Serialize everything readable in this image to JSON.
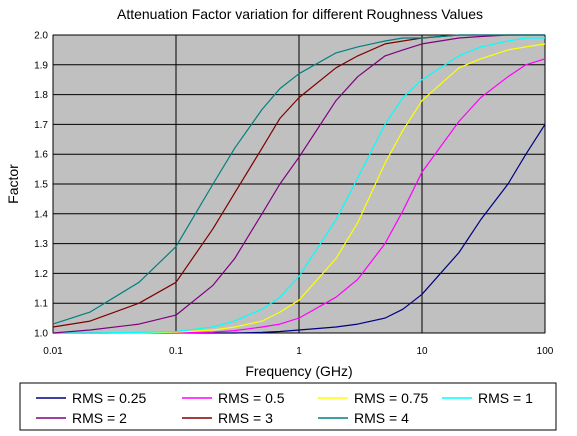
{
  "chart_data": {
    "type": "line",
    "title": "Attenuation Factor variation for different Roughness Values",
    "xlabel": "Frequency (GHz)",
    "ylabel": "Factor",
    "x_scale": "log",
    "xlim": [
      0.01,
      100
    ],
    "ylim": [
      1.0,
      2.0
    ],
    "x_ticks": [
      "0.01",
      "0.1",
      "1",
      "10",
      "100"
    ],
    "y_ticks": [
      "1.0",
      "1.1",
      "1.2",
      "1.3",
      "1.4",
      "1.5",
      "1.6",
      "1.7",
      "1.8",
      "1.9",
      "2.0"
    ],
    "grid": true,
    "plot_background": "#c0c0c0",
    "legend_position": "bottom",
    "x": [
      0.01,
      0.02,
      0.05,
      0.1,
      0.2,
      0.3,
      0.5,
      0.7,
      1,
      2,
      3,
      5,
      7,
      10,
      20,
      30,
      50,
      70,
      100
    ],
    "series": [
      {
        "name": "RMS = 0.25",
        "color": "#000080",
        "values": [
          1.0,
          1.0,
          1.0,
          1.0,
          1.0,
          1.0,
          1.002,
          1.005,
          1.01,
          1.02,
          1.03,
          1.05,
          1.08,
          1.13,
          1.27,
          1.38,
          1.5,
          1.6,
          1.7
        ]
      },
      {
        "name": "RMS = 0.5",
        "color": "#ff00ff",
        "values": [
          1.0,
          1.0,
          1.0,
          1.0,
          1.003,
          1.008,
          1.02,
          1.03,
          1.05,
          1.12,
          1.18,
          1.3,
          1.41,
          1.54,
          1.71,
          1.79,
          1.86,
          1.9,
          1.92
        ]
      },
      {
        "name": "RMS = 0.75",
        "color": "#ffff00",
        "values": [
          1.0,
          1.0,
          1.0,
          1.003,
          1.01,
          1.02,
          1.04,
          1.07,
          1.11,
          1.25,
          1.37,
          1.57,
          1.68,
          1.78,
          1.89,
          1.92,
          1.95,
          1.96,
          1.97
        ]
      },
      {
        "name": "RMS = 1",
        "color": "#00ffff",
        "values": [
          1.0,
          1.0,
          1.002,
          1.005,
          1.02,
          1.04,
          1.08,
          1.12,
          1.19,
          1.38,
          1.52,
          1.7,
          1.79,
          1.85,
          1.93,
          1.96,
          1.98,
          1.99,
          1.99
        ]
      },
      {
        "name": "RMS = 2",
        "color": "#800080",
        "values": [
          1.0,
          1.01,
          1.03,
          1.06,
          1.16,
          1.25,
          1.4,
          1.5,
          1.59,
          1.78,
          1.86,
          1.93,
          1.95,
          1.97,
          1.99,
          1.995,
          2.0,
          2.0,
          2.0
        ]
      },
      {
        "name": "RMS = 3",
        "color": "#800000",
        "values": [
          1.02,
          1.04,
          1.1,
          1.17,
          1.35,
          1.47,
          1.62,
          1.72,
          1.79,
          1.89,
          1.93,
          1.97,
          1.98,
          1.99,
          2.0,
          2.0,
          2.0,
          2.0,
          2.0
        ]
      },
      {
        "name": "RMS = 4",
        "color": "#008080",
        "values": [
          1.03,
          1.07,
          1.17,
          1.29,
          1.5,
          1.62,
          1.75,
          1.82,
          1.87,
          1.94,
          1.96,
          1.98,
          1.99,
          1.99,
          2.0,
          2.0,
          2.0,
          2.0,
          2.0
        ]
      }
    ]
  }
}
